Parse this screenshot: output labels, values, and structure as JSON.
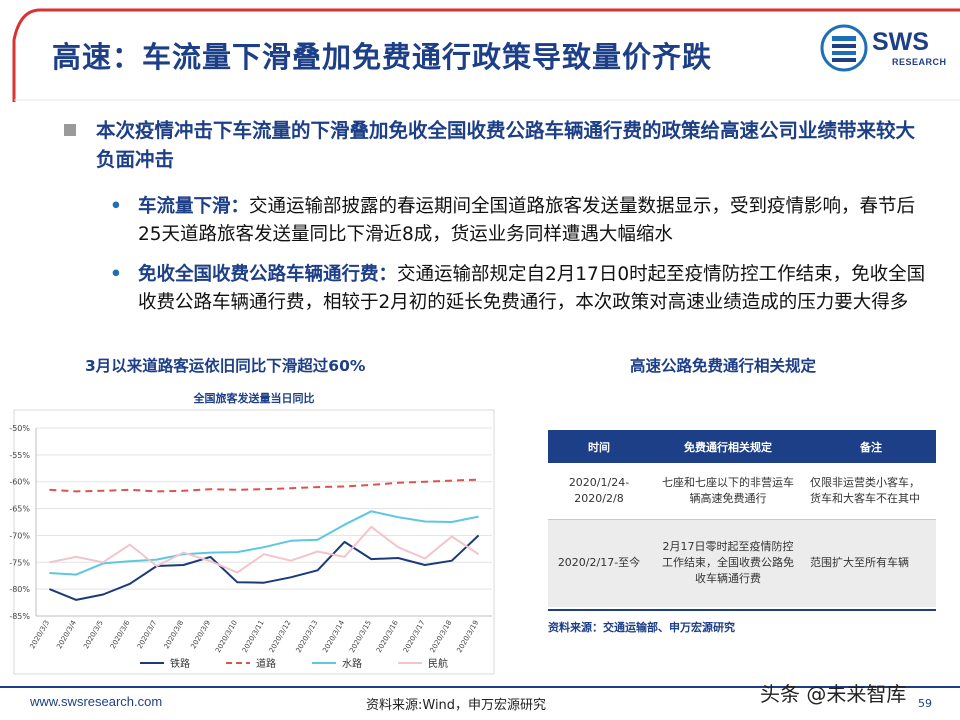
{
  "header": {
    "title": "高速：车流量下滑叠加免费通行政策导致量价齐跌",
    "logo_text": "SWS",
    "logo_sub": "RESEARCH"
  },
  "bullets": {
    "main": "本次疫情冲击下车流量的下滑叠加免收全国收费公路车辆通行费的政策给高速公司业绩带来较大负面冲击",
    "items": [
      {
        "marker": "•",
        "lead": "车流量下滑：",
        "text": "交通运输部披露的春运期间全国道路旅客发送量数据显示，受到疫情影响，春节后25天道路旅客发送量同比下滑近8成，货运业务同样遭遇大幅缩水"
      },
      {
        "marker": "•",
        "lead": "免收全国收费公路车辆通行费：",
        "text": "交通运输部规定自2月17日0时起至疫情防控工作结束，免收全国收费公路车辆通行费，相较于2月初的延长免费通行，本次政策对高速业绩造成的压力要大得多"
      }
    ]
  },
  "sections": {
    "left": "3月以来道路客运依旧同比下滑超过60%",
    "right": "高速公路免费通行相关规定"
  },
  "chart_data": {
    "type": "line",
    "title": "全国旅客发送量当日同比",
    "categories": [
      "2020/3/3",
      "2020/3/4",
      "2020/3/5",
      "2020/3/6",
      "2020/3/7",
      "2020/3/8",
      "2020/3/9",
      "2020/3/10",
      "2020/3/11",
      "2020/3/12",
      "2020/3/13",
      "2020/3/14",
      "2020/3/15",
      "2020/3/16",
      "2020/3/17",
      "2020/3/18",
      "2020/3/19"
    ],
    "ylim": [
      -85,
      -50
    ],
    "yticks": [
      -50,
      -55,
      -60,
      -65,
      -70,
      -75,
      -80,
      -85
    ],
    "ytick_labels": [
      "-50%",
      "-55%",
      "-60%",
      "-65%",
      "-70%",
      "-75%",
      "-80%",
      "-85%"
    ],
    "grid": true,
    "legend_position": "bottom",
    "series": [
      {
        "name": "铁路",
        "color": "#1a3a7a",
        "dash": "solid",
        "values": [
          -80,
          -82,
          -81,
          -79,
          -75.7,
          -75.5,
          -74,
          -78.7,
          -78.8,
          -77.8,
          -76.5,
          -71.2,
          -74.4,
          -74.2,
          -75.5,
          -74.7,
          -70
        ]
      },
      {
        "name": "道路",
        "color": "#d9534f",
        "dash": "dashed",
        "values": [
          -61.5,
          -61.8,
          -61.7,
          -61.5,
          -61.8,
          -61.7,
          -61.4,
          -61.5,
          -61.4,
          -61.2,
          -61,
          -60.9,
          -60.6,
          -60.2,
          -60,
          -59.8,
          -59.6
        ]
      },
      {
        "name": "水路",
        "color": "#5bc8e0",
        "dash": "solid",
        "values": [
          -77,
          -77.3,
          -75.2,
          -74.8,
          -74.5,
          -73.5,
          -73.2,
          -73.1,
          -72.2,
          -71,
          -70.8,
          -68,
          -65.5,
          -66.6,
          -67.4,
          -67.5,
          -66.5
        ]
      },
      {
        "name": "民航",
        "color": "#f2c4cc",
        "dash": "solid",
        "values": [
          -75,
          -74,
          -75,
          -71.7,
          -75.7,
          -73.2,
          -74.8,
          -76.9,
          -73.5,
          -74.7,
          -73,
          -74,
          -68.4,
          -72.2,
          -74.3,
          -70.2,
          -73.5
        ]
      }
    ]
  },
  "table": {
    "headers": [
      "时间",
      "免费通行相关规定",
      "备注"
    ],
    "rows": [
      {
        "time": [
          "2020/1/24-",
          "2020/2/8"
        ],
        "rule": [
          "七座和七座以下的非营运车",
          "辆高速免费通行"
        ],
        "note": [
          "仅限非运营类小客车，",
          "货车和大客车不在其中"
        ]
      },
      {
        "time": [
          "2020/2/17-至今"
        ],
        "rule": [
          "2月17日零时起至疫情防控",
          "工作结束，全国收费公路免",
          "收车辆通行费"
        ],
        "note": [
          "范围扩大至所有车辆"
        ]
      }
    ],
    "source": "资料来源：交通运输部、申万宏源研究"
  },
  "footer": {
    "url": "www.swsresearch.com",
    "source": "资料来源:Wind，申万宏源研究",
    "page": "59",
    "watermark": "头条 @未来智库"
  },
  "colors": {
    "brand": "#1d3f87",
    "accent_red": "#d9322f",
    "table_header": "#1d3f87",
    "table_alt_row": "#ececec"
  }
}
